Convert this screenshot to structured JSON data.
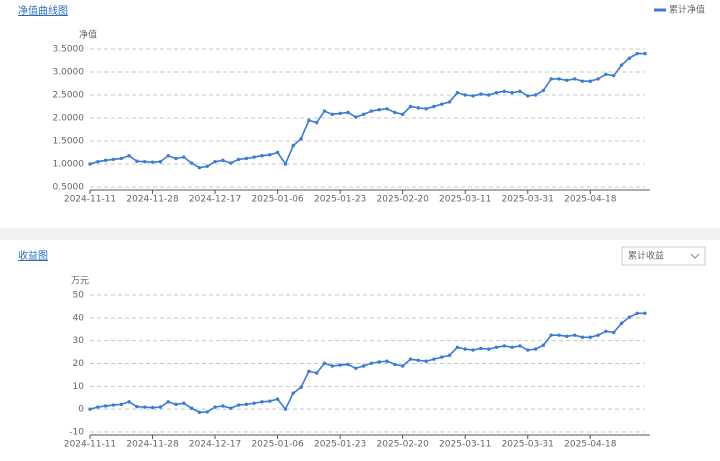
{
  "chart_data": [
    {
      "type": "line",
      "title": "净值曲线图",
      "y_axis_label": "净值",
      "categories": [
        "2024-11-11",
        null,
        null,
        null,
        null,
        null,
        null,
        null,
        "2024-11-28",
        null,
        null,
        null,
        null,
        null,
        null,
        null,
        "2024-12-17",
        null,
        null,
        null,
        null,
        null,
        null,
        null,
        "2025-01-06",
        null,
        null,
        null,
        null,
        null,
        null,
        null,
        "2025-01-23",
        null,
        null,
        null,
        null,
        null,
        null,
        null,
        "2025-02-20",
        null,
        null,
        null,
        null,
        null,
        null,
        null,
        "2025-03-11",
        null,
        null,
        null,
        null,
        null,
        null,
        null,
        "2025-03-31",
        null,
        null,
        null,
        null,
        null,
        null,
        null,
        "2025-04-18",
        null,
        null,
        null,
        null,
        null,
        null,
        null
      ],
      "series": [
        {
          "name": "累计净值",
          "color": "#3a7bd5",
          "values": [
            1.0,
            1.05,
            1.08,
            1.1,
            1.12,
            1.18,
            1.06,
            1.05,
            1.04,
            1.05,
            1.18,
            1.12,
            1.15,
            1.02,
            0.92,
            0.95,
            1.05,
            1.08,
            1.02,
            1.1,
            1.12,
            1.15,
            1.18,
            1.2,
            1.25,
            1.0,
            1.4,
            1.55,
            1.95,
            1.9,
            2.15,
            2.08,
            2.1,
            2.12,
            2.02,
            2.08,
            2.15,
            2.18,
            2.2,
            2.12,
            2.08,
            2.25,
            2.22,
            2.2,
            2.25,
            2.3,
            2.35,
            2.55,
            2.5,
            2.48,
            2.52,
            2.5,
            2.55,
            2.58,
            2.55,
            2.58,
            2.48,
            2.5,
            2.6,
            2.85,
            2.85,
            2.82,
            2.85,
            2.8,
            2.8,
            2.85,
            2.95,
            2.92,
            3.15,
            3.3,
            3.4,
            3.4
          ]
        }
      ],
      "ylim": [
        0.5,
        3.5
      ],
      "yticks": [
        {
          "value": 0.5,
          "label": "0.5000"
        },
        {
          "value": 1,
          "label": "1.0000"
        },
        {
          "value": 1.5,
          "label": "1.5000"
        },
        {
          "value": 2,
          "label": "2.0000"
        },
        {
          "value": 2.5,
          "label": "2.5000"
        },
        {
          "value": 3,
          "label": "3.0000"
        },
        {
          "value": 3.5,
          "label": "3.5000"
        }
      ],
      "grid": true,
      "legend": "top-right"
    },
    {
      "type": "line",
      "title": "收益图",
      "y_axis_label": "万元",
      "dropdown": "累计收益",
      "color": "#3a7bd5",
      "categories": [
        "2024-11-11",
        null,
        null,
        null,
        null,
        null,
        null,
        null,
        "2024-11-28",
        null,
        null,
        null,
        null,
        null,
        null,
        null,
        "2024-12-17",
        null,
        null,
        null,
        null,
        null,
        null,
        null,
        "2025-01-06",
        null,
        null,
        null,
        null,
        null,
        null,
        null,
        "2025-01-23",
        null,
        null,
        null,
        null,
        null,
        null,
        null,
        "2025-02-20",
        null,
        null,
        null,
        null,
        null,
        null,
        null,
        "2025-03-11",
        null,
        null,
        null,
        null,
        null,
        null,
        null,
        "2025-03-31",
        null,
        null,
        null,
        null,
        null,
        null,
        null,
        "2025-04-18",
        null,
        null,
        null,
        null,
        null,
        null,
        null
      ],
      "values": [
        0,
        0.9,
        1.4,
        1.8,
        2.1,
        3.2,
        1.1,
        0.9,
        0.7,
        0.9,
        3.2,
        2.1,
        2.6,
        0.4,
        -1.4,
        -1.2,
        0.9,
        1.4,
        0.4,
        1.8,
        2.1,
        2.6,
        3.2,
        3.5,
        4.4,
        0,
        7,
        9.6,
        16.6,
        15.8,
        20.1,
        18.9,
        19.3,
        19.6,
        17.9,
        18.9,
        20.1,
        20.7,
        21,
        19.6,
        18.9,
        21.9,
        21.4,
        21,
        21.9,
        22.8,
        23.6,
        27.1,
        26.3,
        25.9,
        26.6,
        26.3,
        27.1,
        27.7,
        27.1,
        27.7,
        25.9,
        26.3,
        28,
        32.4,
        32.4,
        31.9,
        32.4,
        31.5,
        31.5,
        32.4,
        34.1,
        33.6,
        37.6,
        40.3,
        42,
        42
      ],
      "ylim": [
        -10,
        50
      ],
      "yticks": [
        -10,
        0,
        10,
        20,
        30,
        40,
        50
      ],
      "grid": true
    }
  ]
}
